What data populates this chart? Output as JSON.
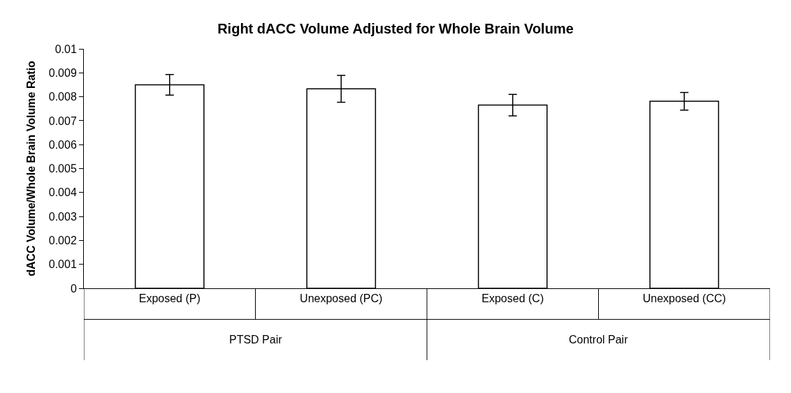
{
  "chart_data": {
    "type": "bar",
    "title": "Right dACC Volume Adjusted for Whole Brain Volume",
    "ylabel": "dACC Volume/Whole Brain Volume Ratio",
    "categories": [
      "Exposed (P)",
      "Unexposed (PC)",
      "Exposed (C)",
      "Unexposed (CC)"
    ],
    "values": [
      0.0085,
      0.00833,
      0.00765,
      0.00781
    ],
    "errors": [
      0.00043,
      0.00056,
      0.00045,
      0.00037
    ],
    "color": "#ffffff",
    "annotations": [
      "PTSD Pair",
      "Control Pair"
    ],
    "ylim": [
      0,
      0.01
    ],
    "yticks": [
      0,
      0.001,
      0.002,
      0.003,
      0.004,
      0.005,
      0.006,
      0.007,
      0.008,
      0.009,
      0.01
    ]
  }
}
